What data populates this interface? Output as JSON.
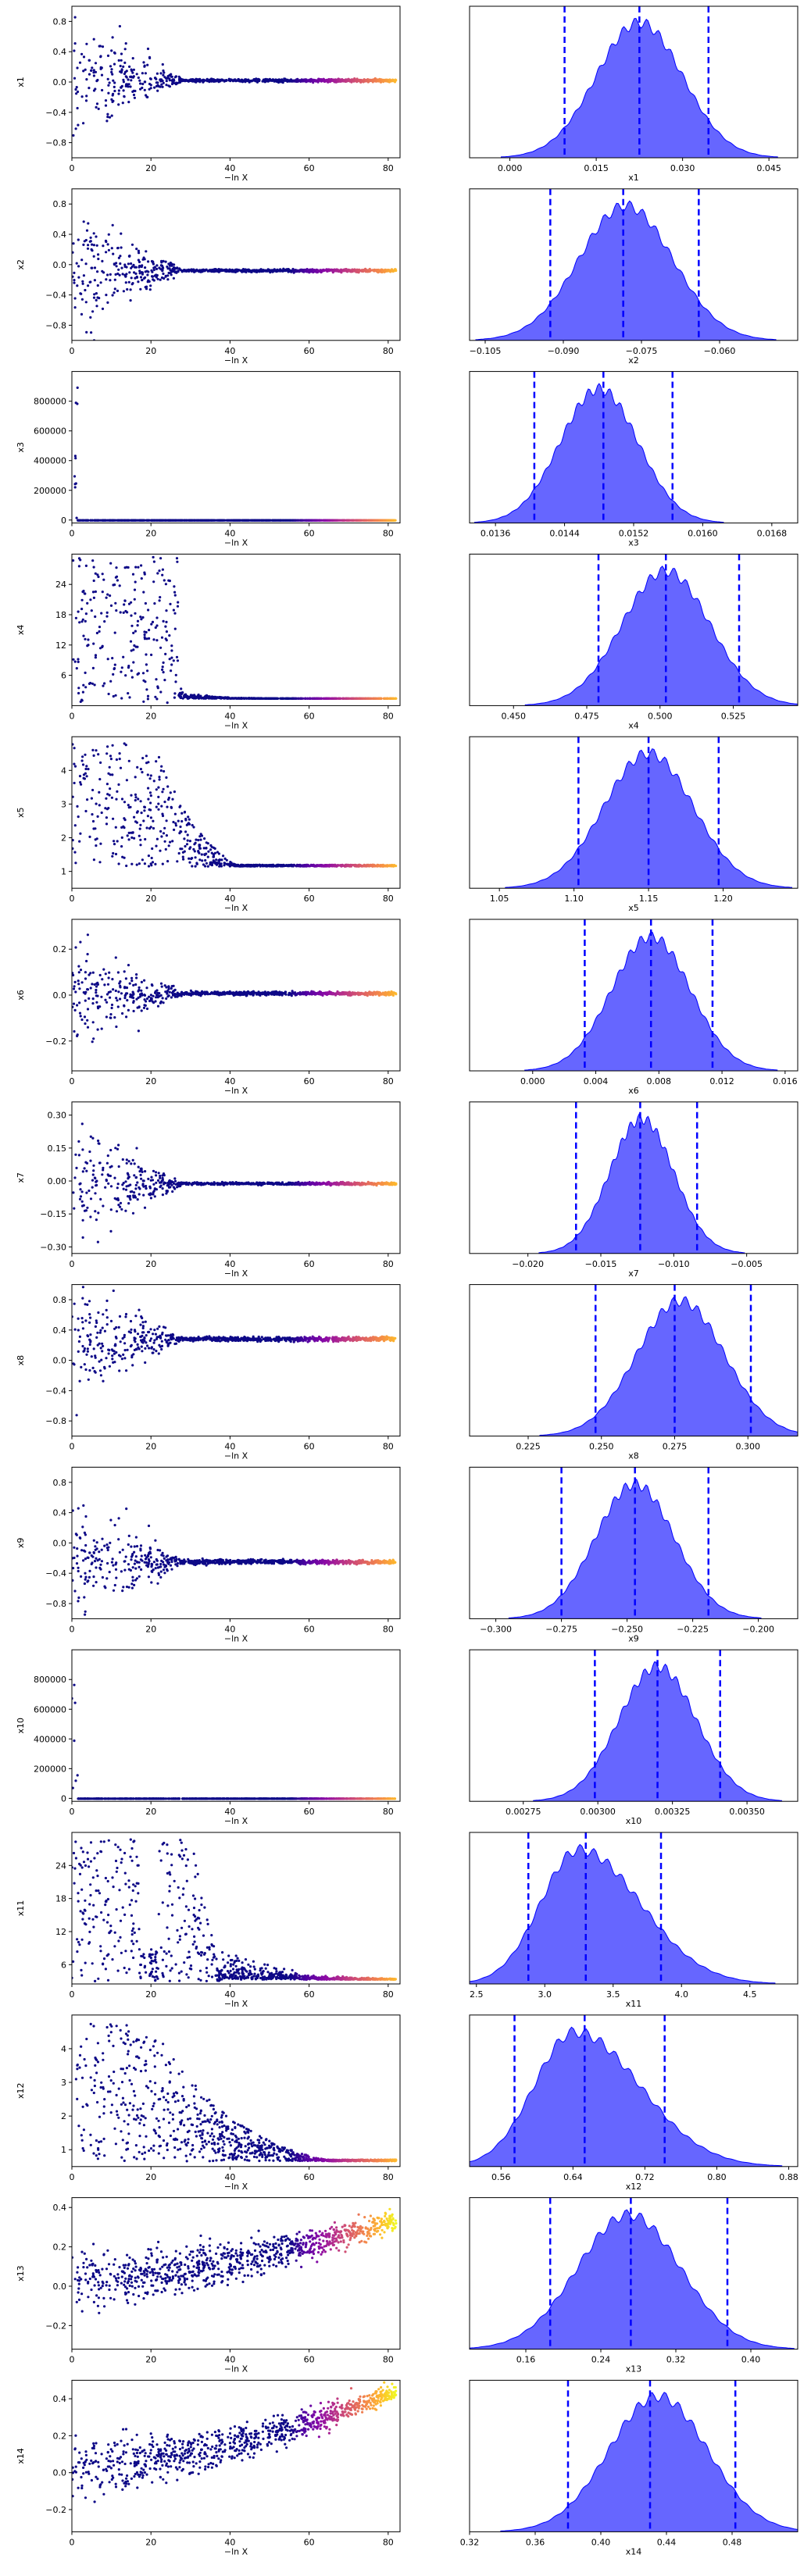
{
  "chart_data": [
    {
      "type": "scatter",
      "ylabel": "x1",
      "xlabel": "−ln X",
      "xlim": [
        0,
        83
      ],
      "xticks": [
        0,
        20,
        40,
        60,
        80
      ],
      "ylim": [
        -1.0,
        1.0
      ],
      "yticks": [
        -0.8,
        -0.4,
        0.0,
        0.4,
        0.8
      ],
      "ytick_labels": [
        "−0.8",
        "−0.4",
        "0.0",
        "0.4",
        "0.8"
      ],
      "profile": {
        "spread_early": 0.9,
        "spread_late": 0.02,
        "center": 0.02,
        "lobe_center_x": 20,
        "trend": 0
      },
      "colormap": "plasma"
    },
    {
      "type": "area",
      "xlabel": "x1",
      "xlim": [
        -0.007,
        0.05
      ],
      "xticks": [
        0.0,
        0.015,
        0.03,
        0.045
      ],
      "xtick_labels": [
        "0.000",
        "0.015",
        "0.030",
        "0.045"
      ],
      "peak": 0.0225,
      "sigma": 0.0075,
      "quantile_lines": [
        0.0095,
        0.0225,
        0.0345
      ],
      "fill_color": "#0000ff",
      "line_color": "#0000ff"
    },
    {
      "type": "scatter",
      "ylabel": "x2",
      "xlabel": "−ln X",
      "xlim": [
        0,
        83
      ],
      "xticks": [
        0,
        20,
        40,
        60,
        80
      ],
      "ylim": [
        -1.0,
        1.0
      ],
      "yticks": [
        -0.8,
        -0.4,
        0.0,
        0.4,
        0.8
      ],
      "ytick_labels": [
        "−0.8",
        "−0.4",
        "0.0",
        "0.4",
        "0.8"
      ],
      "profile": {
        "spread_early": 0.9,
        "spread_late": 0.02,
        "center": -0.08,
        "lobe_center_x": 20,
        "trend": 0
      },
      "colormap": "plasma"
    },
    {
      "type": "area",
      "xlabel": "x2",
      "xlim": [
        -0.108,
        -0.045
      ],
      "xticks": [
        -0.105,
        -0.09,
        -0.075,
        -0.06
      ],
      "xtick_labels": [
        "−0.105",
        "−0.090",
        "−0.075",
        "−0.060"
      ],
      "peak": -0.078,
      "sigma": 0.009,
      "quantile_lines": [
        -0.0925,
        -0.0785,
        -0.064
      ],
      "fill_color": "#0000ff",
      "line_color": "#0000ff"
    },
    {
      "type": "scatter",
      "ylabel": "x3",
      "xlabel": "−ln X",
      "xlim": [
        0,
        83
      ],
      "xticks": [
        0,
        20,
        40,
        60,
        80
      ],
      "ylim": [
        -20000,
        1000000
      ],
      "yticks": [
        0,
        200000,
        400000,
        600000,
        800000
      ],
      "ytick_labels": [
        "0",
        "200000",
        "400000",
        "600000",
        "800000"
      ],
      "profile": {
        "spike": true,
        "center": 0.015
      },
      "colormap": "plasma"
    },
    {
      "type": "area",
      "xlabel": "x3",
      "xlim": [
        0.0133,
        0.0171
      ],
      "xticks": [
        0.0136,
        0.0144,
        0.0152,
        0.016,
        0.0168
      ],
      "xtick_labels": [
        "0.0136",
        "0.0144",
        "0.0152",
        "0.0160",
        "0.0168"
      ],
      "peak": 0.0148,
      "sigma": 0.00045,
      "quantile_lines": [
        0.01405,
        0.01485,
        0.01565
      ],
      "fill_color": "#0000ff",
      "line_color": "#0000ff"
    },
    {
      "type": "scatter",
      "ylabel": "x4",
      "xlabel": "−ln X",
      "xlim": [
        0,
        83
      ],
      "xticks": [
        0,
        20,
        40,
        60,
        80
      ],
      "ylim": [
        0,
        30
      ],
      "yticks": [
        6,
        12,
        18,
        24
      ],
      "ytick_labels": [
        "6",
        "12",
        "18",
        "24"
      ],
      "profile": {
        "block": true,
        "block_x": [
          0,
          27
        ],
        "block_y": [
          0.5,
          30
        ],
        "center": 0.5
      },
      "colormap": "plasma"
    },
    {
      "type": "area",
      "xlabel": "x4",
      "xlim": [
        0.435,
        0.547
      ],
      "xticks": [
        0.45,
        0.475,
        0.5,
        0.525
      ],
      "xtick_labels": [
        "0.450",
        "0.475",
        "0.500",
        "0.525"
      ],
      "peak": 0.502,
      "sigma": 0.015,
      "quantile_lines": [
        0.479,
        0.502,
        0.527
      ],
      "fill_color": "#0000ff",
      "line_color": "#0000ff"
    },
    {
      "type": "scatter",
      "ylabel": "x5",
      "xlabel": "−ln X",
      "xlim": [
        0,
        83
      ],
      "xticks": [
        0,
        20,
        40,
        60,
        80
      ],
      "ylim": [
        0.5,
        5.0
      ],
      "yticks": [
        1,
        2,
        3,
        4
      ],
      "ytick_labels": [
        "1",
        "2",
        "3",
        "4"
      ],
      "profile": {
        "decay": true,
        "high": 4.8,
        "center": 1.15
      },
      "colormap": "plasma"
    },
    {
      "type": "area",
      "xlabel": "x5",
      "xlim": [
        1.03,
        1.25
      ],
      "xticks": [
        1.05,
        1.1,
        1.15,
        1.2
      ],
      "xtick_labels": [
        "1.05",
        "1.10",
        "1.15",
        "1.20"
      ],
      "peak": 1.15,
      "sigma": 0.03,
      "quantile_lines": [
        1.103,
        1.15,
        1.197
      ],
      "fill_color": "#0000ff",
      "line_color": "#0000ff"
    },
    {
      "type": "scatter",
      "ylabel": "x6",
      "xlabel": "−ln X",
      "xlim": [
        0,
        83
      ],
      "xticks": [
        0,
        20,
        40,
        60,
        80
      ],
      "ylim": [
        -0.33,
        0.33
      ],
      "yticks": [
        -0.2,
        0.0,
        0.2
      ],
      "ytick_labels": [
        "−0.2",
        "0.0",
        "0.2"
      ],
      "profile": {
        "spread_early": 0.28,
        "spread_late": 0.008,
        "center": 0.007,
        "trend": 0
      },
      "colormap": "plasma"
    },
    {
      "type": "area",
      "xlabel": "x6",
      "xlim": [
        -0.004,
        0.0168
      ],
      "xticks": [
        0.0,
        0.004,
        0.008,
        0.012,
        0.016
      ],
      "xtick_labels": [
        "0.000",
        "0.004",
        "0.008",
        "0.012",
        "0.016"
      ],
      "peak": 0.0075,
      "sigma": 0.0025,
      "quantile_lines": [
        0.0033,
        0.0075,
        0.0114
      ],
      "fill_color": "#0000ff",
      "line_color": "#0000ff"
    },
    {
      "type": "scatter",
      "ylabel": "x7",
      "xlabel": "−ln X",
      "xlim": [
        0,
        83
      ],
      "xticks": [
        0,
        20,
        40,
        60,
        80
      ],
      "ylim": [
        -0.33,
        0.36
      ],
      "yticks": [
        -0.3,
        -0.15,
        0.0,
        0.15,
        0.3
      ],
      "ytick_labels": [
        "−0.30",
        "−0.15",
        "0.00",
        "0.15",
        "0.30"
      ],
      "profile": {
        "spread_early": 0.3,
        "spread_late": 0.006,
        "center": -0.012,
        "trend": 0
      },
      "colormap": "plasma"
    },
    {
      "type": "area",
      "xlabel": "x7",
      "xlim": [
        -0.024,
        -0.0015
      ],
      "xticks": [
        -0.02,
        -0.015,
        -0.01,
        -0.005
      ],
      "xtick_labels": [
        "−0.020",
        "−0.015",
        "−0.010",
        "−0.005"
      ],
      "peak": -0.0122,
      "sigma": 0.0022,
      "quantile_lines": [
        -0.0167,
        -0.0123,
        -0.0084
      ],
      "fill_color": "#0000ff",
      "line_color": "#0000ff"
    },
    {
      "type": "scatter",
      "ylabel": "x8",
      "xlabel": "−ln X",
      "xlim": [
        0,
        83
      ],
      "xticks": [
        0,
        20,
        40,
        60,
        80
      ],
      "ylim": [
        -1.0,
        1.0
      ],
      "yticks": [
        -0.8,
        -0.4,
        0.0,
        0.4,
        0.8
      ],
      "ytick_labels": [
        "−0.8",
        "−0.4",
        "0.0",
        "0.4",
        "0.8"
      ],
      "profile": {
        "spread_early": 0.9,
        "spread_late": 0.03,
        "center": 0.28,
        "trend": 0
      },
      "colormap": "plasma"
    },
    {
      "type": "area",
      "xlabel": "x8",
      "xlim": [
        0.205,
        0.317
      ],
      "xticks": [
        0.225,
        0.25,
        0.275,
        0.3
      ],
      "xtick_labels": [
        "0.225",
        "0.250",
        "0.275",
        "0.300"
      ],
      "peak": 0.277,
      "sigma": 0.015,
      "quantile_lines": [
        0.248,
        0.275,
        0.301
      ],
      "fill_color": "#0000ff",
      "line_color": "#0000ff"
    },
    {
      "type": "scatter",
      "ylabel": "x9",
      "xlabel": "−ln X",
      "xlim": [
        0,
        83
      ],
      "xticks": [
        0,
        20,
        40,
        60,
        80
      ],
      "ylim": [
        -1.0,
        1.0
      ],
      "yticks": [
        -0.8,
        -0.4,
        0.0,
        0.4,
        0.8
      ],
      "ytick_labels": [
        "−0.8",
        "−0.4",
        "0.0",
        "0.4",
        "0.8"
      ],
      "profile": {
        "spread_early": 0.9,
        "spread_late": 0.03,
        "center": -0.25,
        "trend": 0
      },
      "colormap": "plasma"
    },
    {
      "type": "area",
      "xlabel": "x9",
      "xlim": [
        -0.31,
        -0.185
      ],
      "xticks": [
        -0.3,
        -0.275,
        -0.25,
        -0.225,
        -0.2
      ],
      "xtick_labels": [
        "−0.300",
        "−0.275",
        "−0.250",
        "−0.225",
        "−0.200"
      ],
      "peak": -0.247,
      "sigma": 0.015,
      "quantile_lines": [
        -0.275,
        -0.247,
        -0.219
      ],
      "fill_color": "#0000ff",
      "line_color": "#0000ff"
    },
    {
      "type": "scatter",
      "ylabel": "x10",
      "xlabel": "−ln X",
      "xlim": [
        0,
        83
      ],
      "xticks": [
        0,
        20,
        40,
        60,
        80
      ],
      "ylim": [
        -20000,
        1000000
      ],
      "yticks": [
        0,
        200000,
        400000,
        600000,
        800000
      ],
      "ytick_labels": [
        "0",
        "200000",
        "400000",
        "600000",
        "800000"
      ],
      "profile": {
        "spike": true,
        "center": 0.0032
      },
      "colormap": "plasma"
    },
    {
      "type": "area",
      "xlabel": "x10",
      "xlim": [
        0.00257,
        0.00367
      ],
      "xticks": [
        0.00275,
        0.003,
        0.00325,
        0.0035
      ],
      "xtick_labels": [
        "0.00275",
        "0.00300",
        "0.00325",
        "0.00350"
      ],
      "peak": 0.0032,
      "sigma": 0.00013,
      "quantile_lines": [
        0.00299,
        0.0032,
        0.00341
      ],
      "fill_color": "#0000ff",
      "line_color": "#0000ff"
    },
    {
      "type": "scatter",
      "ylabel": "x11",
      "xlabel": "−ln X",
      "xlim": [
        0,
        83
      ],
      "xticks": [
        0,
        20,
        40,
        60,
        80
      ],
      "ylim": [
        2.5,
        30
      ],
      "yticks": [
        6,
        12,
        18,
        24
      ],
      "ytick_labels": [
        "6",
        "12",
        "18",
        "24"
      ],
      "profile": {
        "double_block": true,
        "center": 3.3
      },
      "colormap": "plasma"
    },
    {
      "type": "area",
      "xlabel": "x11",
      "xlim": [
        2.45,
        4.85
      ],
      "xticks": [
        2.5,
        3.0,
        3.5,
        4.0,
        4.5
      ],
      "xtick_labels": [
        "2.5",
        "3.0",
        "3.5",
        "4.0",
        "4.5"
      ],
      "peak": 3.25,
      "sigma": 0.28,
      "skew": 0.6,
      "quantile_lines": [
        2.88,
        3.3,
        3.85
      ],
      "fill_color": "#0000ff",
      "line_color": "#0000ff"
    },
    {
      "type": "scatter",
      "ylabel": "x12",
      "xlabel": "−ln X",
      "xlim": [
        0,
        83
      ],
      "xticks": [
        0,
        20,
        40,
        60,
        80
      ],
      "ylim": [
        0.5,
        5.0
      ],
      "yticks": [
        1,
        2,
        3,
        4
      ],
      "ytick_labels": [
        "1",
        "2",
        "3",
        "4"
      ],
      "profile": {
        "decay": true,
        "high": 4.8,
        "center": 0.66,
        "slow": true
      },
      "colormap": "plasma"
    },
    {
      "type": "area",
      "xlabel": "x12",
      "xlim": [
        0.525,
        0.89
      ],
      "xticks": [
        0.56,
        0.64,
        0.72,
        0.8,
        0.88
      ],
      "xtick_labels": [
        "0.56",
        "0.64",
        "0.72",
        "0.80",
        "0.88"
      ],
      "peak": 0.642,
      "sigma": 0.045,
      "skew": 0.6,
      "quantile_lines": [
        0.575,
        0.653,
        0.742
      ],
      "fill_color": "#0000ff",
      "line_color": "#0000ff"
    },
    {
      "type": "scatter",
      "ylabel": "x13",
      "xlabel": "−ln X",
      "xlim": [
        0,
        83
      ],
      "xticks": [
        0,
        20,
        40,
        60,
        80
      ],
      "ylim": [
        -0.32,
        0.45
      ],
      "yticks": [
        -0.2,
        0.0,
        0.2,
        0.4
      ],
      "ytick_labels": [
        "−0.2",
        "0.0",
        "0.2",
        "0.4"
      ],
      "profile": {
        "rising": true,
        "start": 0.03,
        "end": 0.33,
        "spread_early": 0.15,
        "spread_late": 0.05
      },
      "colormap": "plasma"
    },
    {
      "type": "area",
      "xlabel": "x13",
      "xlim": [
        0.1,
        0.45
      ],
      "xticks": [
        0.16,
        0.24,
        0.32,
        0.4
      ],
      "xtick_labels": [
        "0.16",
        "0.24",
        "0.32",
        "0.40"
      ],
      "peak": 0.27,
      "sigma": 0.055,
      "quantile_lines": [
        0.186,
        0.272,
        0.375
      ],
      "fill_color": "#0000ff",
      "line_color": "#0000ff"
    },
    {
      "type": "scatter",
      "ylabel": "x14",
      "xlabel": "−ln X",
      "xlim": [
        0,
        83
      ],
      "xticks": [
        0,
        20,
        40,
        60,
        80
      ],
      "ylim": [
        -0.32,
        0.5
      ],
      "yticks": [
        -0.2,
        0.0,
        0.2,
        0.4
      ],
      "ytick_labels": [
        "−0.2",
        "0.0",
        "0.2",
        "0.4"
      ],
      "profile": {
        "rising": true,
        "start": 0.02,
        "end": 0.44,
        "spread_early": 0.15,
        "spread_late": 0.04
      },
      "colormap": "plasma"
    },
    {
      "type": "area",
      "xlabel": "x14",
      "xlim": [
        0.32,
        0.52
      ],
      "xticks": [
        0.32,
        0.36,
        0.4,
        0.44,
        0.48
      ],
      "xtick_labels": [
        "0.32",
        "0.36",
        "0.40",
        "0.44",
        "0.48"
      ],
      "peak": 0.435,
      "sigma": 0.03,
      "quantile_lines": [
        0.38,
        0.43,
        0.482
      ],
      "fill_color": "#0000ff",
      "line_color": "#0000ff"
    }
  ]
}
